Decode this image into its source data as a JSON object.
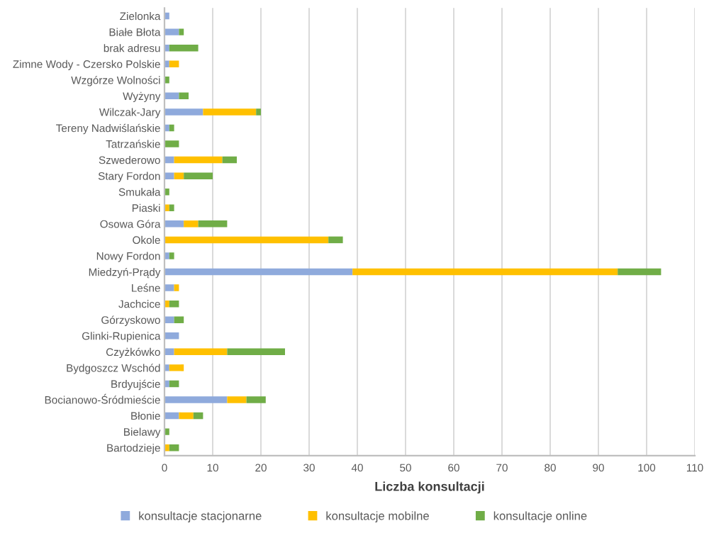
{
  "chart_data": {
    "type": "bar",
    "orientation": "horizontal",
    "stacked": true,
    "xlabel": "Liczba konsultacji",
    "categories": [
      "Zielonka",
      "Białe Błota",
      "brak adresu",
      "Zimne Wody - Czersko Polskie",
      "Wzgórze Wolności",
      "Wyżyny",
      "Wilczak-Jary",
      "Tereny Nadwiślańskie",
      "Tatrzańskie",
      "Szwederowo",
      "Stary Fordon",
      "Smukała",
      "Piaski",
      "Osowa Góra",
      "Okole",
      "Nowy Fordon",
      "Miedzyń-Prądy",
      "Leśne",
      "Jachcice",
      "Górzyskowo",
      "Glinki-Rupienica",
      "Czyżkówko",
      "Bydgoszcz Wschód",
      "Brdyujście",
      "Bocianowo-Śródmieście",
      "Błonie",
      "Bielawy",
      "Bartodzieje"
    ],
    "series": [
      {
        "name": "konsultacje stacjonarne",
        "color": "#8faadc",
        "values": [
          1,
          3,
          1,
          1,
          0,
          3,
          8,
          1,
          0,
          2,
          2,
          0,
          0,
          4,
          0,
          1,
          39,
          2,
          0,
          2,
          3,
          2,
          1,
          1,
          13,
          3,
          0,
          0
        ]
      },
      {
        "name": "konsultacje mobilne",
        "color": "#ffc000",
        "values": [
          0,
          0,
          0,
          2,
          0,
          0,
          11,
          0,
          0,
          10,
          2,
          0,
          1,
          3,
          34,
          0,
          55,
          1,
          1,
          0,
          0,
          11,
          3,
          0,
          4,
          3,
          0,
          1
        ]
      },
      {
        "name": "konsultacje online",
        "color": "#70ad47",
        "values": [
          0,
          1,
          6,
          0,
          1,
          2,
          1,
          1,
          3,
          3,
          6,
          1,
          1,
          6,
          3,
          1,
          9,
          0,
          2,
          2,
          0,
          12,
          0,
          2,
          4,
          2,
          1,
          2
        ]
      }
    ],
    "xlim": [
      0,
      110
    ],
    "xticks": [
      0,
      10,
      20,
      30,
      40,
      50,
      60,
      70,
      80,
      90,
      100,
      110
    ],
    "grid": "x",
    "legend": "bottom"
  }
}
